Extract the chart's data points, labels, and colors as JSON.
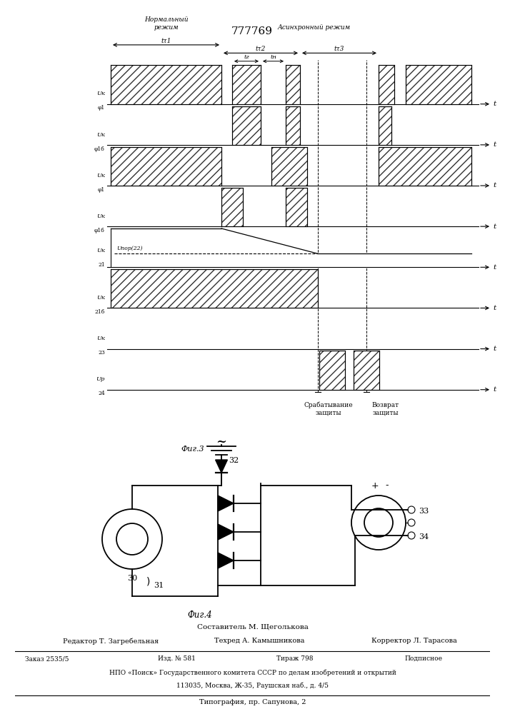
{
  "title": "777769",
  "fig3_label": "Фиг.3",
  "fig4_label": "Фиг.4",
  "header_normal": "Нормальный\nрежим",
  "header_async": "Асинхронный режим",
  "label_ty1": "tτ1",
  "label_ty2": "tτ2",
  "label_ty3": "tτ3",
  "label_tr": "tг",
  "label_tn": "tн",
  "label_upor": "Uпор(22)",
  "bottom_label1": "Срабатывание\nзащиты",
  "bottom_label2": "Возврат\nзащиты",
  "node30": "30",
  "node31": "31",
  "node32": "32",
  "node33": "33",
  "node34": "34",
  "footer1": "Составитель М. Щеголькова",
  "footer_editor": "Редактор Т. Загребельная",
  "footer_techr": "Техред А. Камышникова",
  "footer_corr": "Корректор Л. Тарасова",
  "footer3a": "Заказ 2535/5",
  "footer3b": "Изд. № 581",
  "footer3c": "Тираж 798",
  "footer3d": "Подписное",
  "footer4": "НПО «Поиск» Государственного комитета СССР по делам изобретений и открытий",
  "footer5": "113035, Москва, Ж-35, Раушская наб., д. 4/5",
  "footer6": "Типография, пр. Сапунова, 2",
  "bg_color": "#ffffff"
}
